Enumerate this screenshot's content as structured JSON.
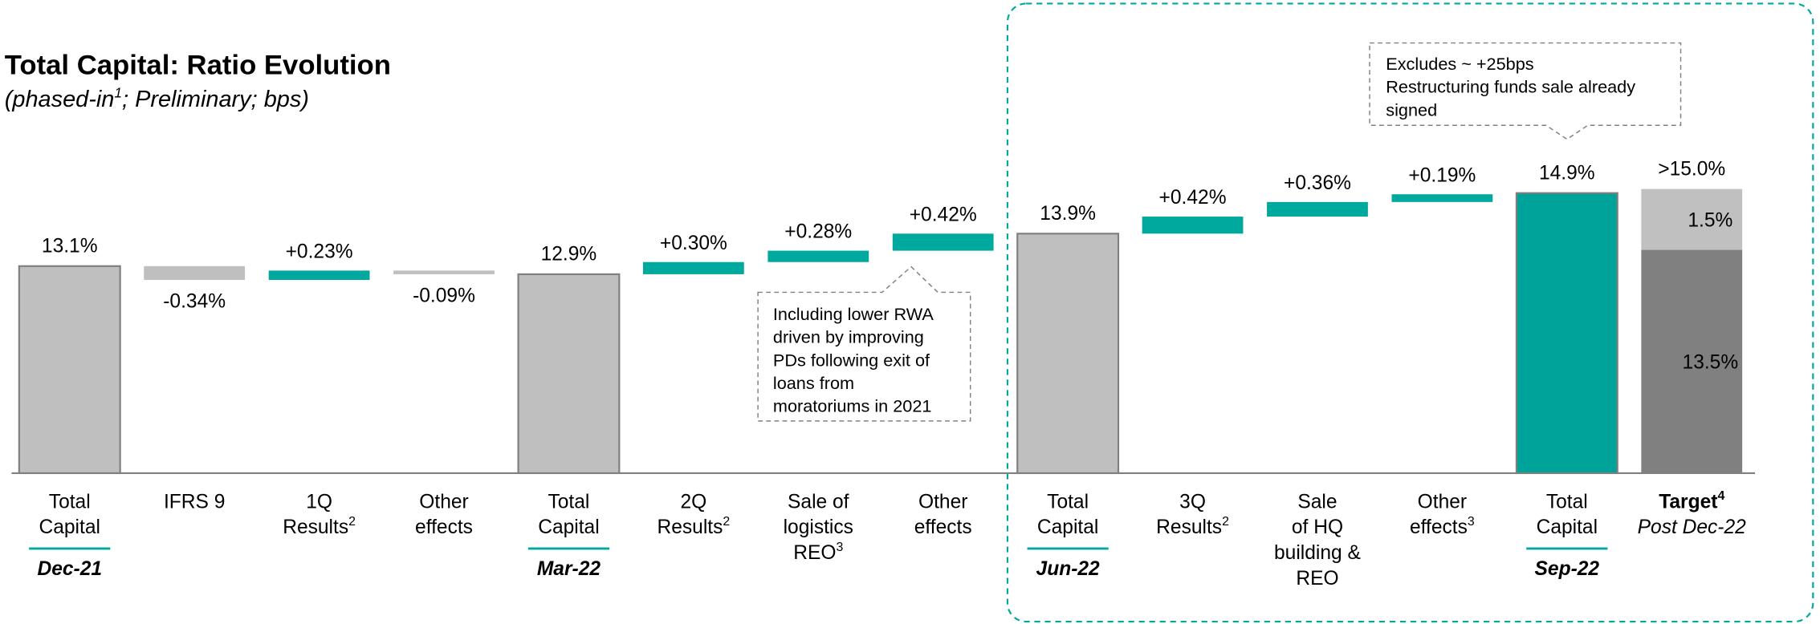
{
  "chart_data": {
    "type": "waterfall",
    "title": "Total Capital: Ratio Evolution",
    "subtitle": [
      "(phased-in",
      "1",
      "; Preliminary; bps)"
    ],
    "categories": [
      [
        "Total",
        "Capital"
      ],
      [
        "IFRS 9"
      ],
      [
        "1Q",
        "Results"
      ],
      [
        "Other",
        "effects"
      ],
      [
        "Total",
        "Capital"
      ],
      [
        "2Q",
        "Results"
      ],
      [
        "Sale of",
        "logistics",
        "REO"
      ],
      [
        "Other",
        "effects"
      ],
      [
        "Total",
        "Capital"
      ],
      [
        "3Q",
        "Results"
      ],
      [
        "Sale",
        "of HQ",
        "building &",
        "REO"
      ],
      [
        "Other",
        "effects"
      ],
      [
        "Total",
        "Capital"
      ]
    ],
    "superscripts": [
      null,
      null,
      "2",
      null,
      null,
      "2",
      "3",
      null,
      null,
      "2",
      null,
      "3",
      null
    ],
    "periods": [
      "Dec-21",
      null,
      null,
      null,
      "Mar-22",
      null,
      null,
      null,
      "Jun-22",
      null,
      null,
      null,
      "Sep-22"
    ],
    "kinds": [
      "total",
      "delta",
      "delta",
      "delta",
      "total",
      "delta",
      "delta",
      "delta",
      "total",
      "delta",
      "delta",
      "delta",
      "total"
    ],
    "values": [
      13.1,
      -0.34,
      0.23,
      -0.09,
      12.9,
      0.3,
      0.28,
      0.42,
      13.9,
      0.42,
      0.36,
      0.19,
      14.9
    ],
    "value_labels": [
      "13.1%",
      "-0.34%",
      "+0.23%",
      "-0.09%",
      "12.9%",
      "+0.30%",
      "+0.28%",
      "+0.42%",
      "13.9%",
      "+0.42%",
      "+0.36%",
      "+0.19%",
      "14.9%"
    ],
    "colors": [
      "#bfbfbf",
      "#bfbfbf",
      "#00a99d",
      "#bfbfbf",
      "#bfbfbf",
      "#00a99d",
      "#00a99d",
      "#00a99d",
      "#bfbfbf",
      "#00a99d",
      "#00a99d",
      "#00a99d",
      "#00a39a"
    ],
    "target": {
      "label": "Target",
      "superscript": "4",
      "period": "Post Dec-22",
      "segments": [
        13.5,
        1.5
      ],
      "segment_labels": [
        "13.5%",
        "1.5%"
      ],
      "value_label": ">15.0%",
      "colors": [
        "#808080",
        "#c0c0c0"
      ]
    },
    "annotations": [
      {
        "lines": [
          "Including lower RWA",
          "driven by improving",
          "PDs following exit of",
          "loans from",
          "moratoriums in 2021"
        ]
      },
      {
        "lines": [
          "Excludes ~ +25bps",
          "Restructuring funds sale already",
          "signed"
        ]
      }
    ]
  }
}
